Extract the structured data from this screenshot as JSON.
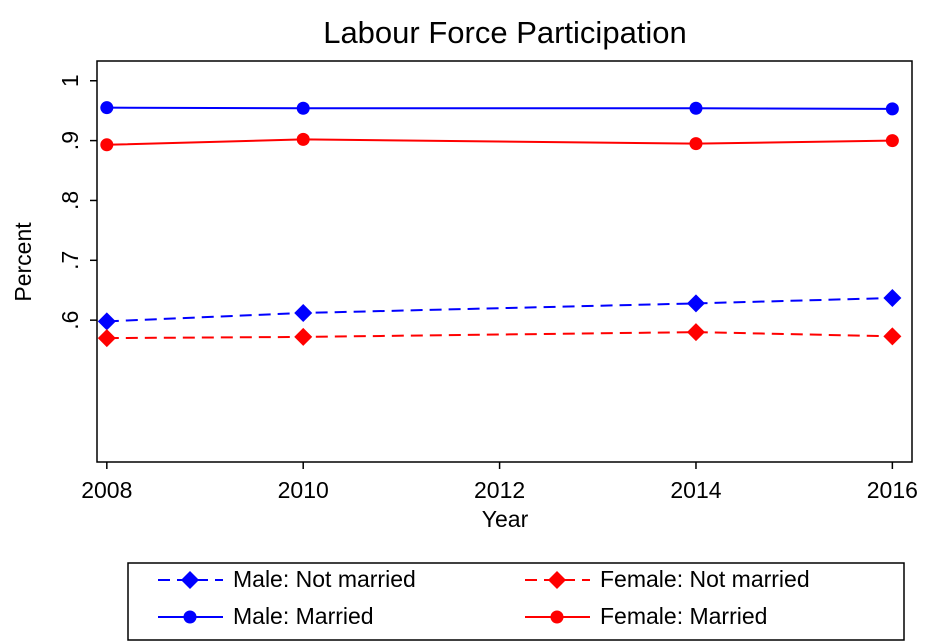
{
  "chart_data": {
    "type": "line",
    "title": "Labour Force Participation",
    "x_label": "Year",
    "y_label": "Percent",
    "x": [
      2008,
      2010,
      2014,
      2016
    ],
    "xlim": [
      2007.9,
      2016.2
    ],
    "xticks": [
      2008,
      2010,
      2012,
      2014,
      2016
    ],
    "ylim": [
      0.363,
      1.033
    ],
    "yticks": [
      {
        "value": 0.6,
        "label": ".6"
      },
      {
        "value": 0.7,
        "label": ".7"
      },
      {
        "value": 0.8,
        "label": ".8"
      },
      {
        "value": 0.9,
        "label": ".9"
      },
      1
    ],
    "grid": false,
    "series": [
      {
        "name": "Male: Not married",
        "color": "#0000ff",
        "line_style": "dashed",
        "marker": "diamond",
        "values": [
          0.598,
          0.612,
          0.628,
          0.637
        ]
      },
      {
        "name": "Female: Not married",
        "color": "#ff0000",
        "line_style": "dashed",
        "marker": "diamond",
        "values": [
          0.57,
          0.572,
          0.58,
          0.573
        ]
      },
      {
        "name": "Male: Married",
        "color": "#0000ff",
        "line_style": "solid",
        "marker": "circle",
        "values": [
          0.955,
          0.954,
          0.954,
          0.953
        ]
      },
      {
        "name": "Female: Married",
        "color": "#ff0000",
        "line_style": "solid",
        "marker": "circle",
        "values": [
          0.893,
          0.902,
          0.895,
          0.9
        ]
      }
    ]
  }
}
